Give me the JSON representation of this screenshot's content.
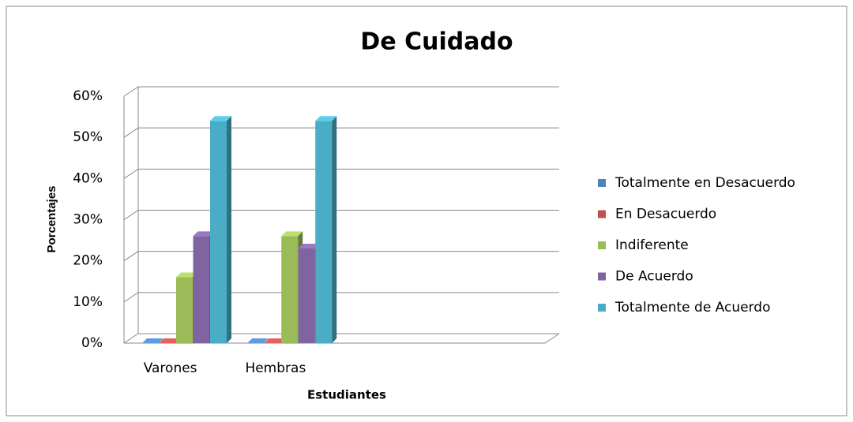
{
  "chart_data": {
    "type": "bar3d",
    "title": "De Cuidado",
    "x_label": "Estudiantes",
    "y_label": "Porcentajes",
    "categories": [
      "Varones",
      "Hembras",
      null,
      null
    ],
    "series": [
      {
        "name": "Totalmente en Desacuerdo",
        "color": "#4f81bd",
        "values": [
          0,
          0,
          null,
          null
        ]
      },
      {
        "name": "En Desacuerdo",
        "color": "#c0504d",
        "values": [
          0,
          0,
          null,
          null
        ]
      },
      {
        "name": "Indiferente",
        "color": "#9bbb59",
        "values": [
          16,
          26,
          null,
          null
        ]
      },
      {
        "name": "De Acuerdo",
        "color": "#8064a2",
        "values": [
          26,
          23,
          null,
          null
        ]
      },
      {
        "name": "Totalmente de Acuerdo",
        "color": "#4bacc6",
        "values": [
          54,
          54,
          null,
          null
        ]
      }
    ],
    "ylim": [
      0,
      60
    ],
    "yticks": [
      {
        "value": 0,
        "label": "0%"
      },
      {
        "value": 10,
        "label": "10%"
      },
      {
        "value": 20,
        "label": "20%"
      },
      {
        "value": 30,
        "label": "30%"
      },
      {
        "value": 40,
        "label": "40%"
      },
      {
        "value": 50,
        "label": "50%"
      },
      {
        "value": 60,
        "label": "60%"
      }
    ],
    "grid": true,
    "legend": "right"
  }
}
